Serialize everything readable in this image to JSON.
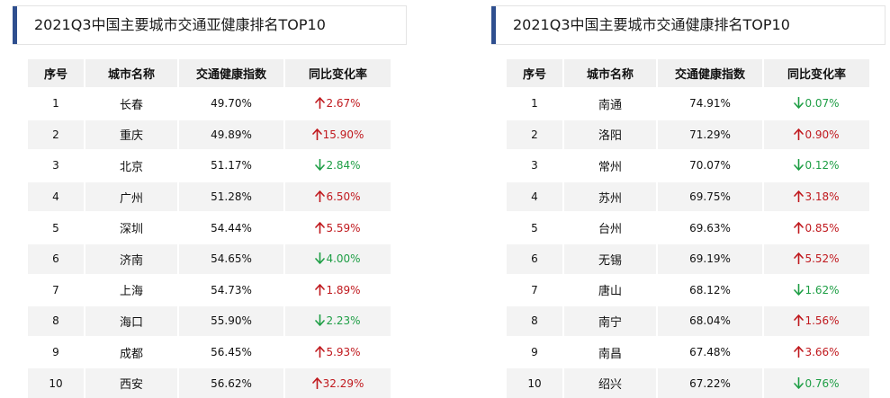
{
  "left": {
    "title": "2021Q3中国主要城市交通亚健康排名TOP10",
    "headers": [
      "序号",
      "城市名称",
      "交通健康指数",
      "同比变化率"
    ],
    "rows": [
      {
        "rank": "1",
        "city": "长春",
        "index": "49.70%",
        "change": "2.67%",
        "dir": "up"
      },
      {
        "rank": "2",
        "city": "重庆",
        "index": "49.89%",
        "change": "15.90%",
        "dir": "up"
      },
      {
        "rank": "3",
        "city": "北京",
        "index": "51.17%",
        "change": "2.84%",
        "dir": "down"
      },
      {
        "rank": "4",
        "city": "广州",
        "index": "51.28%",
        "change": "6.50%",
        "dir": "up"
      },
      {
        "rank": "5",
        "city": "深圳",
        "index": "54.44%",
        "change": "5.59%",
        "dir": "up"
      },
      {
        "rank": "6",
        "city": "济南",
        "index": "54.65%",
        "change": "4.00%",
        "dir": "down"
      },
      {
        "rank": "7",
        "city": "上海",
        "index": "54.73%",
        "change": "1.89%",
        "dir": "up"
      },
      {
        "rank": "8",
        "city": "海口",
        "index": "55.90%",
        "change": "2.23%",
        "dir": "down"
      },
      {
        "rank": "9",
        "city": "成都",
        "index": "56.45%",
        "change": "5.93%",
        "dir": "up"
      },
      {
        "rank": "10",
        "city": "西安",
        "index": "56.62%",
        "change": "32.29%",
        "dir": "up"
      }
    ]
  },
  "right": {
    "title": "2021Q3中国主要城市交通健康排名TOP10",
    "headers": [
      "序号",
      "城市名称",
      "交通健康指数",
      "同比变化率"
    ],
    "rows": [
      {
        "rank": "1",
        "city": "南通",
        "index": "74.91%",
        "change": "0.07%",
        "dir": "down"
      },
      {
        "rank": "2",
        "city": "洛阳",
        "index": "71.29%",
        "change": "0.90%",
        "dir": "up"
      },
      {
        "rank": "3",
        "city": "常州",
        "index": "70.07%",
        "change": "0.12%",
        "dir": "down"
      },
      {
        "rank": "4",
        "city": "苏州",
        "index": "69.75%",
        "change": "3.18%",
        "dir": "up"
      },
      {
        "rank": "5",
        "city": "台州",
        "index": "69.63%",
        "change": "0.85%",
        "dir": "up"
      },
      {
        "rank": "6",
        "city": "无锡",
        "index": "69.19%",
        "change": "5.52%",
        "dir": "up"
      },
      {
        "rank": "7",
        "city": "唐山",
        "index": "68.12%",
        "change": "1.62%",
        "dir": "down"
      },
      {
        "rank": "8",
        "city": "南宁",
        "index": "68.04%",
        "change": "1.56%",
        "dir": "up"
      },
      {
        "rank": "9",
        "city": "南昌",
        "index": "67.48%",
        "change": "3.66%",
        "dir": "up"
      },
      {
        "rank": "10",
        "city": "绍兴",
        "index": "67.22%",
        "change": "0.76%",
        "dir": "down"
      }
    ]
  },
  "colors": {
    "accent": "#2f4f8f",
    "up": "#c0191e",
    "down": "#1e9e45",
    "header_bg": "#f0f0f0",
    "stripe_bg": "#f3f3f3"
  },
  "icons": {
    "up": "arrow-up-icon",
    "down": "arrow-down-icon"
  }
}
